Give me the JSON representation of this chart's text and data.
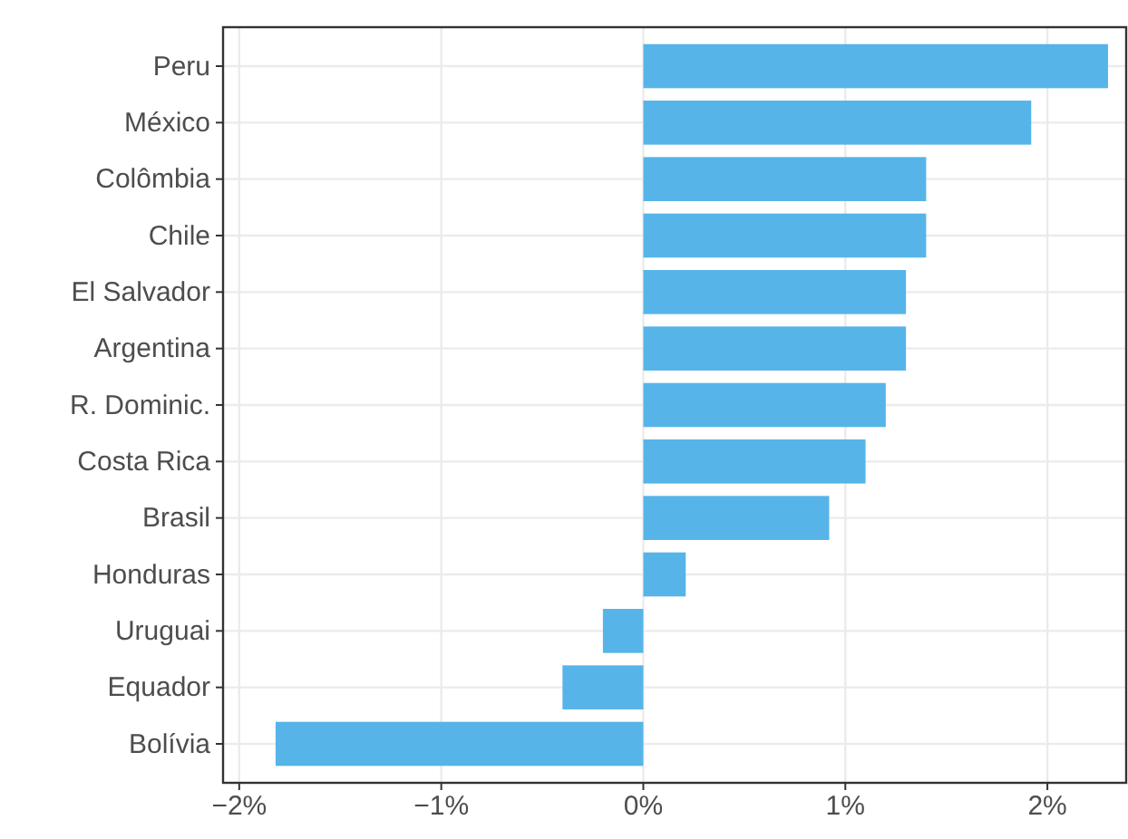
{
  "chart_data": {
    "type": "bar",
    "orientation": "horizontal",
    "categories": [
      "Peru",
      "México",
      "Colômbia",
      "Chile",
      "El Salvador",
      "Argentina",
      "R. Dominic.",
      "Costa Rica",
      "Brasil",
      "Honduras",
      "Uruguai",
      "Equador",
      "Bolívia"
    ],
    "values": [
      2.3,
      1.92,
      1.4,
      1.4,
      1.3,
      1.3,
      1.2,
      1.1,
      0.92,
      0.21,
      -0.2,
      -0.4,
      -1.82
    ],
    "color": "#56b4e9",
    "xlim": [
      -2.08,
      2.39
    ],
    "xticks": [
      {
        "value": -2,
        "label": "−2%"
      },
      {
        "value": -1,
        "label": "−1%"
      },
      {
        "value": 0,
        "label": "0%"
      },
      {
        "value": 1,
        "label": "1%"
      },
      {
        "value": 2,
        "label": "2%"
      }
    ],
    "grid": true
  }
}
